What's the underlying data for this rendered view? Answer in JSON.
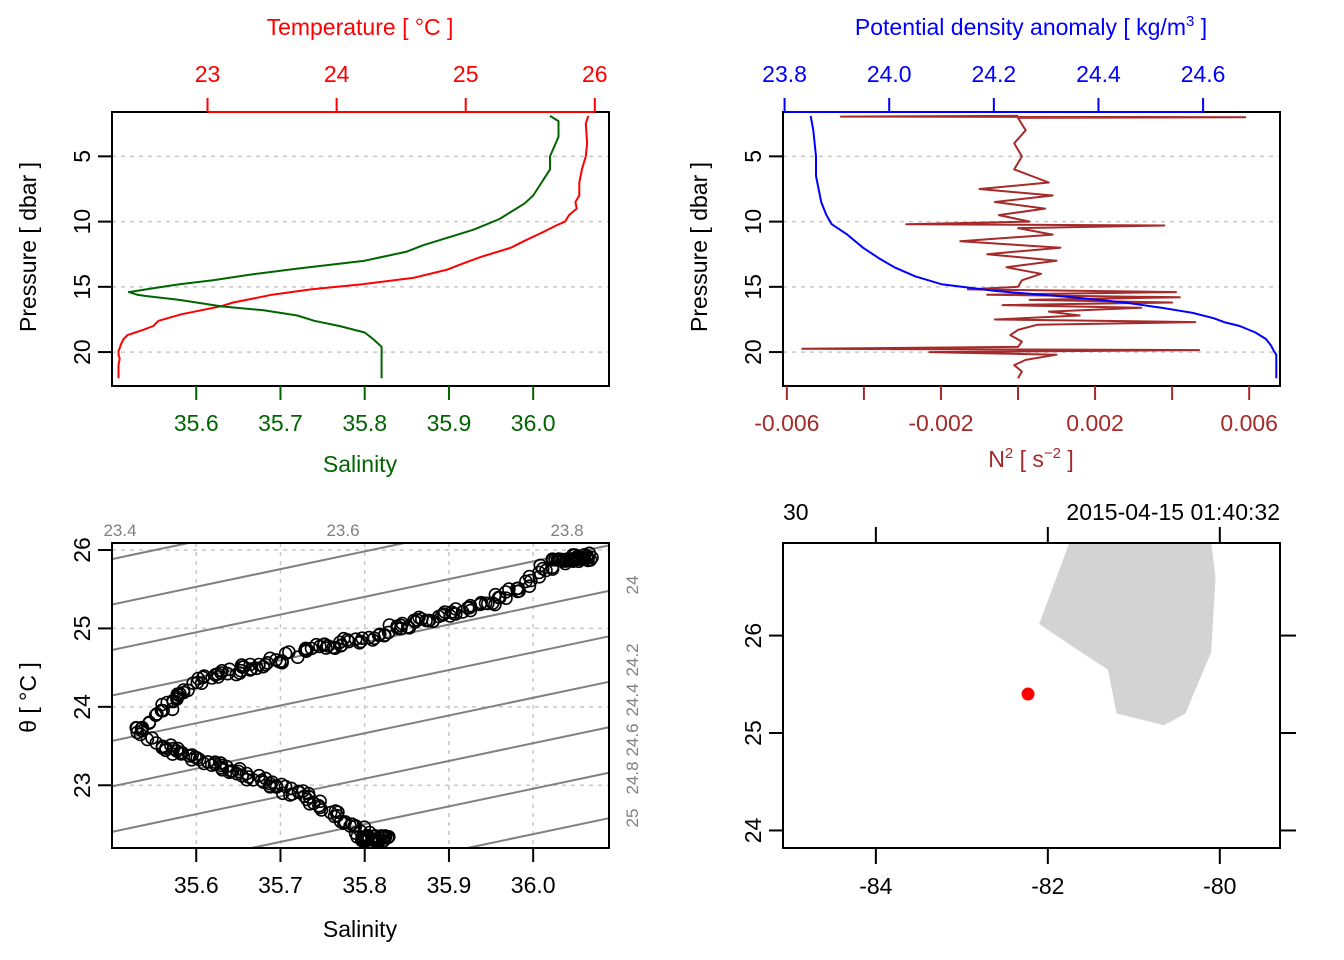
{
  "figure": "CTD summary plot (4 panels)",
  "chart_data": [
    {
      "panel": "top-left",
      "type": "line",
      "title": "",
      "yaxis": {
        "label": "Pressure [ dbar ]",
        "range": [
          22.6,
          1.6
        ],
        "ticks": [
          5,
          10,
          15,
          20
        ],
        "reversed": true,
        "grid": true
      },
      "top_axis": {
        "label": "Temperature [ °C ]",
        "range": [
          22.26,
          26.11
        ],
        "ticks": [
          "23",
          "24",
          "25",
          "26"
        ],
        "tick_values": [
          23,
          24,
          25,
          26
        ],
        "color": "#ff0000"
      },
      "bottom_axis": {
        "label": "Salinity",
        "range": [
          35.5,
          36.09
        ],
        "ticks": [
          "35.6",
          "35.7",
          "35.8",
          "35.9",
          "36.0"
        ],
        "tick_values": [
          35.6,
          35.7,
          35.8,
          35.9,
          36.0
        ],
        "color": "#006400"
      },
      "series": [
        {
          "name": "Temperature",
          "axis": "top",
          "color": "#ff0000",
          "pressure": [
            1.9,
            2.5,
            4,
            5,
            6,
            7,
            8,
            8.5,
            9,
            9.5,
            10,
            10.3,
            10.8,
            11.5,
            12,
            12.7,
            13.2,
            13.7,
            14.3,
            14.8,
            15.2,
            15.6,
            15.9,
            16.2,
            16.5,
            16.8,
            17.1,
            17.6,
            18.0,
            18.3,
            18.5,
            18.7,
            19.0,
            19.4,
            19.7,
            19.9,
            20.2,
            20.5,
            21,
            22
          ],
          "values": [
            25.95,
            25.93,
            25.94,
            25.93,
            25.9,
            25.88,
            25.88,
            25.85,
            25.86,
            25.8,
            25.77,
            25.7,
            25.6,
            25.45,
            25.35,
            25.12,
            24.98,
            24.85,
            24.6,
            24.2,
            23.8,
            23.5,
            23.35,
            23.2,
            23.1,
            22.95,
            22.8,
            22.62,
            22.58,
            22.5,
            22.44,
            22.38,
            22.35,
            22.33,
            22.32,
            22.31,
            22.31,
            22.32,
            22.31,
            22.31
          ]
        },
        {
          "name": "Salinity",
          "axis": "bottom",
          "color": "#006400",
          "pressure": [
            1.9,
            2.3,
            3.5,
            5,
            6,
            7,
            8,
            8.6,
            9,
            9.8,
            10.6,
            11.2,
            11.8,
            12.3,
            13,
            13.6,
            14.1,
            14.5,
            14.8,
            15.1,
            15.4,
            15.6,
            15.7,
            16.0,
            16.5,
            16.8,
            17.2,
            17.6,
            18.0,
            18.5,
            19.0,
            19.6,
            20.0,
            20.5,
            21.2,
            22.0
          ],
          "values": [
            36.02,
            36.03,
            36.03,
            36.02,
            36.02,
            36.01,
            36.0,
            35.99,
            35.98,
            35.96,
            35.93,
            35.9,
            35.87,
            35.85,
            35.8,
            35.72,
            35.66,
            35.62,
            35.58,
            35.55,
            35.52,
            35.53,
            35.54,
            35.58,
            35.63,
            35.68,
            35.72,
            35.74,
            35.77,
            35.8,
            35.81,
            35.82,
            35.82,
            35.82,
            35.82,
            35.82
          ]
        }
      ]
    },
    {
      "panel": "top-right",
      "type": "line",
      "yaxis": {
        "label": "Pressure [ dbar ]",
        "range": [
          22.6,
          1.6
        ],
        "ticks": [
          5,
          10,
          15,
          20
        ],
        "reversed": true,
        "grid": true
      },
      "top_axis": {
        "label": "Potential density anomaly [ kg/m³ ]",
        "range": [
          23.797,
          24.747
        ],
        "ticks": [
          "23.8",
          "24.0",
          "24.2",
          "24.4",
          "24.6"
        ],
        "tick_values": [
          23.8,
          24.0,
          24.2,
          24.4,
          24.6
        ],
        "color": "#0000ff"
      },
      "bottom_axis": {
        "label": "N² [ s⁻² ]",
        "range": [
          -0.0061,
          0.0068
        ],
        "ticks": [
          "-0.006",
          "",
          "-0.002",
          "",
          "0.002",
          "",
          "0.006"
        ],
        "tick_values": [
          -0.006,
          -0.004,
          -0.002,
          0,
          0.002,
          0.004,
          0.006
        ],
        "color": "#a52a2a"
      },
      "series": [
        {
          "name": "Potential density anomaly",
          "axis": "top",
          "color": "#0000ff",
          "pressure": [
            1.9,
            3,
            5,
            6.5,
            7.5,
            8.5,
            9.5,
            10.2,
            11,
            12,
            12.8,
            13.5,
            14.2,
            14.8,
            15.3,
            15.8,
            16.2,
            16.6,
            17.0,
            17.4,
            17.7,
            18.0,
            18.5,
            19.0,
            19.5,
            19.9,
            20.2,
            21,
            22
          ],
          "values": [
            23.85,
            23.855,
            23.86,
            23.86,
            23.865,
            23.87,
            23.88,
            23.89,
            23.92,
            23.95,
            23.98,
            24.01,
            24.05,
            24.1,
            24.2,
            24.35,
            24.45,
            24.52,
            24.58,
            24.62,
            24.64,
            24.67,
            24.7,
            24.72,
            24.73,
            24.735,
            24.74,
            24.74,
            24.74
          ]
        },
        {
          "name": "N²",
          "axis": "bottom",
          "color": "#a52a2a",
          "pressure": [
            1.9,
            1.95,
            2.0,
            2.05,
            3,
            4,
            5,
            6,
            7,
            7.5,
            8,
            8.5,
            9,
            9.5,
            10.0,
            10.2,
            10.3,
            10.5,
            11,
            11.5,
            12,
            12.5,
            13,
            13.5,
            14,
            14.5,
            15.0,
            15.2,
            15.4,
            15.6,
            15.8,
            16,
            16.2,
            16.4,
            16.6,
            16.9,
            17.2,
            17.5,
            17.7,
            17.9,
            18.3,
            18.7,
            19.2,
            19.6,
            19.75,
            19.85,
            20.0,
            20.2,
            20.6,
            21,
            21.5,
            22
          ],
          "values": [
            0.0,
            -0.0046,
            0.0059,
            0.0,
            0.0002,
            -0.0001,
            0.0001,
            -0.0001,
            0.0008,
            -0.001,
            0.0009,
            -0.0006,
            0.0007,
            -0.0005,
            0.0003,
            -0.0029,
            0.0038,
            0.0,
            0.0009,
            -0.0015,
            0.0011,
            -0.0008,
            0.001,
            -0.0003,
            0.0006,
            0.0001,
            0.0,
            -0.0013,
            0.0041,
            -0.0008,
            0.0042,
            0.0003,
            0.004,
            -0.0004,
            0.0032,
            0.0008,
            0.0016,
            -0.0006,
            0.0046,
            0.0005,
            0.0,
            -0.0002,
            0.0001,
            0.0,
            -0.0056,
            0.0047,
            -0.0023,
            0.001,
            0.0002,
            -0.0001,
            0.0001,
            0.0
          ]
        }
      ]
    },
    {
      "panel": "bottom-left",
      "type": "scatter",
      "xaxis": {
        "label": "Salinity",
        "range": [
          35.5,
          36.09
        ],
        "ticks": [
          "35.6",
          "35.7",
          "35.8",
          "35.9",
          "36.0"
        ],
        "tick_values": [
          35.6,
          35.7,
          35.8,
          35.9,
          36.0
        ],
        "grid": true
      },
      "yaxis": {
        "label": "θ [ °C ]",
        "range": [
          22.2,
          26.0
        ],
        "ticks": [
          "23",
          "24",
          "25",
          "26"
        ],
        "tick_values": [
          23,
          24,
          25,
          26
        ],
        "grid": true
      },
      "isopycnals": {
        "color": "#808080",
        "labels": [
          "23.4",
          "23.6",
          "23.8",
          "24",
          "24.2",
          "24.4",
          "24.6",
          "24.8",
          "25"
        ],
        "sigma_values": [
          23.4,
          23.6,
          23.8,
          24.0,
          24.2,
          24.4,
          24.6,
          24.8,
          25.0
        ]
      },
      "points": {
        "marker": "open-circle",
        "color": "#000000",
        "salinity": [
          35.53,
          35.55,
          35.57,
          35.58,
          35.6,
          35.62,
          35.64,
          35.66,
          35.68,
          35.7,
          35.73,
          35.75,
          35.77,
          35.79,
          35.81,
          35.83,
          35.85,
          35.87,
          35.89,
          35.91,
          35.93,
          35.95,
          35.97,
          35.99,
          36.01,
          36.03,
          36.05,
          36.07,
          35.56,
          35.58,
          35.6,
          35.62,
          35.64,
          35.66,
          35.68,
          35.7,
          35.72,
          35.74,
          35.76,
          35.78,
          35.8,
          35.82
        ],
        "theta": [
          23.68,
          23.85,
          24.05,
          24.15,
          24.3,
          24.4,
          24.45,
          24.5,
          24.55,
          24.6,
          24.7,
          24.75,
          24.8,
          24.85,
          24.9,
          25.0,
          25.05,
          25.1,
          25.15,
          25.2,
          25.25,
          25.35,
          25.45,
          25.55,
          25.75,
          25.85,
          25.9,
          25.92,
          23.5,
          23.42,
          23.35,
          23.28,
          23.2,
          23.12,
          23.05,
          22.98,
          22.9,
          22.8,
          22.65,
          22.5,
          22.38,
          22.3
        ]
      }
    },
    {
      "panel": "bottom-right",
      "type": "scatter",
      "subtype": "map",
      "xaxis": {
        "label": "",
        "range": [
          -85.08,
          -79.3
        ],
        "ticks": [
          "-84",
          "-82",
          "-80"
        ],
        "tick_values": [
          -84,
          -82,
          -80
        ]
      },
      "yaxis": {
        "label": "",
        "range": [
          23.82,
          26.95
        ],
        "ticks": [
          "24",
          "25",
          "26"
        ],
        "tick_values": [
          24,
          25,
          26
        ]
      },
      "top_labels": {
        "left": "30",
        "right": "2015-04-15 01:40:32"
      },
      "top_tick_longitudes": [
        -84,
        -82,
        -80
      ],
      "land_color": "#d3d3d3",
      "coastline": {
        "lon": [
          -81.75,
          -80.1,
          -80.05,
          -80.1,
          -80.4,
          -80.65,
          -81.2,
          -81.3,
          -81.7,
          -82.1
        ],
        "lat": [
          26.95,
          26.95,
          26.6,
          25.83,
          25.2,
          25.08,
          25.2,
          25.65,
          25.88,
          26.12
        ]
      },
      "station": {
        "lon": -82.23,
        "lat": 25.4,
        "color": "#ff0000"
      }
    }
  ]
}
